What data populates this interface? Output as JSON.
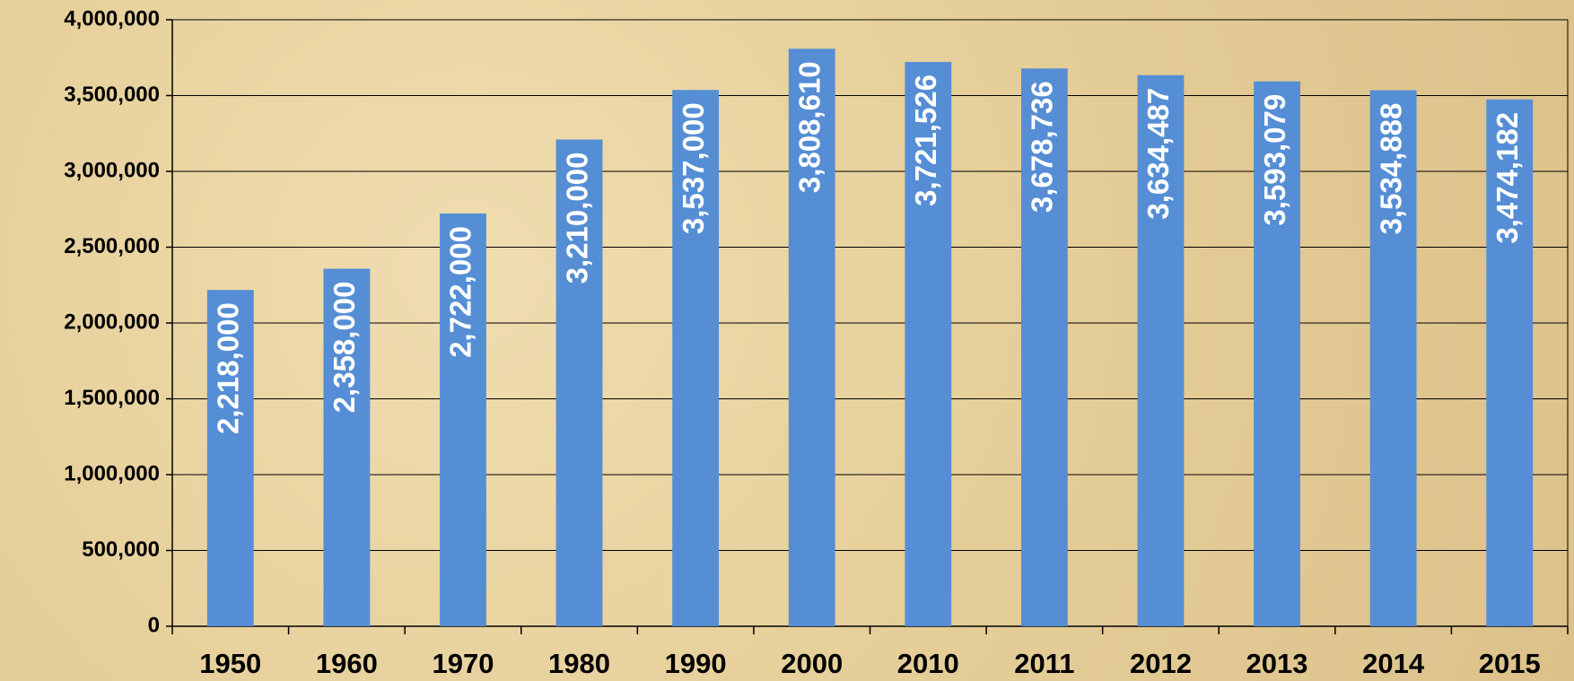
{
  "chart_data": {
    "type": "bar",
    "categories": [
      "1950",
      "1960",
      "1970",
      "1980",
      "1990",
      "2000",
      "2010",
      "2011",
      "2012",
      "2013",
      "2014",
      "2015"
    ],
    "values": [
      2218000,
      2358000,
      2722000,
      3210000,
      3537000,
      3808610,
      3721526,
      3678736,
      3634487,
      3593079,
      3534888,
      3474182
    ],
    "value_labels": [
      "2,218,000",
      "2,358,000",
      "2,722,000",
      "3,210,000",
      "3,537,000",
      "3,808,610",
      "3,721,526",
      "3,678,736",
      "3,634,487",
      "3,593,079",
      "3,534,888",
      "3,474,182"
    ],
    "color": "#558ed5",
    "ylim": [
      0,
      4000000
    ],
    "yticks": [
      0,
      {
        "value": 500000,
        "label": "500,000"
      },
      {
        "value": 1000000,
        "label": "1,000,000"
      },
      {
        "value": 1500000,
        "label": "1,500,000"
      },
      {
        "value": 2000000,
        "label": "2,000,000"
      },
      {
        "value": 2500000,
        "label": "2,500,000"
      },
      {
        "value": 3000000,
        "label": "3,000,000"
      },
      {
        "value": 3500000,
        "label": "3,500,000"
      },
      {
        "value": 4000000,
        "label": "4,000,000"
      }
    ],
    "grid": true
  }
}
